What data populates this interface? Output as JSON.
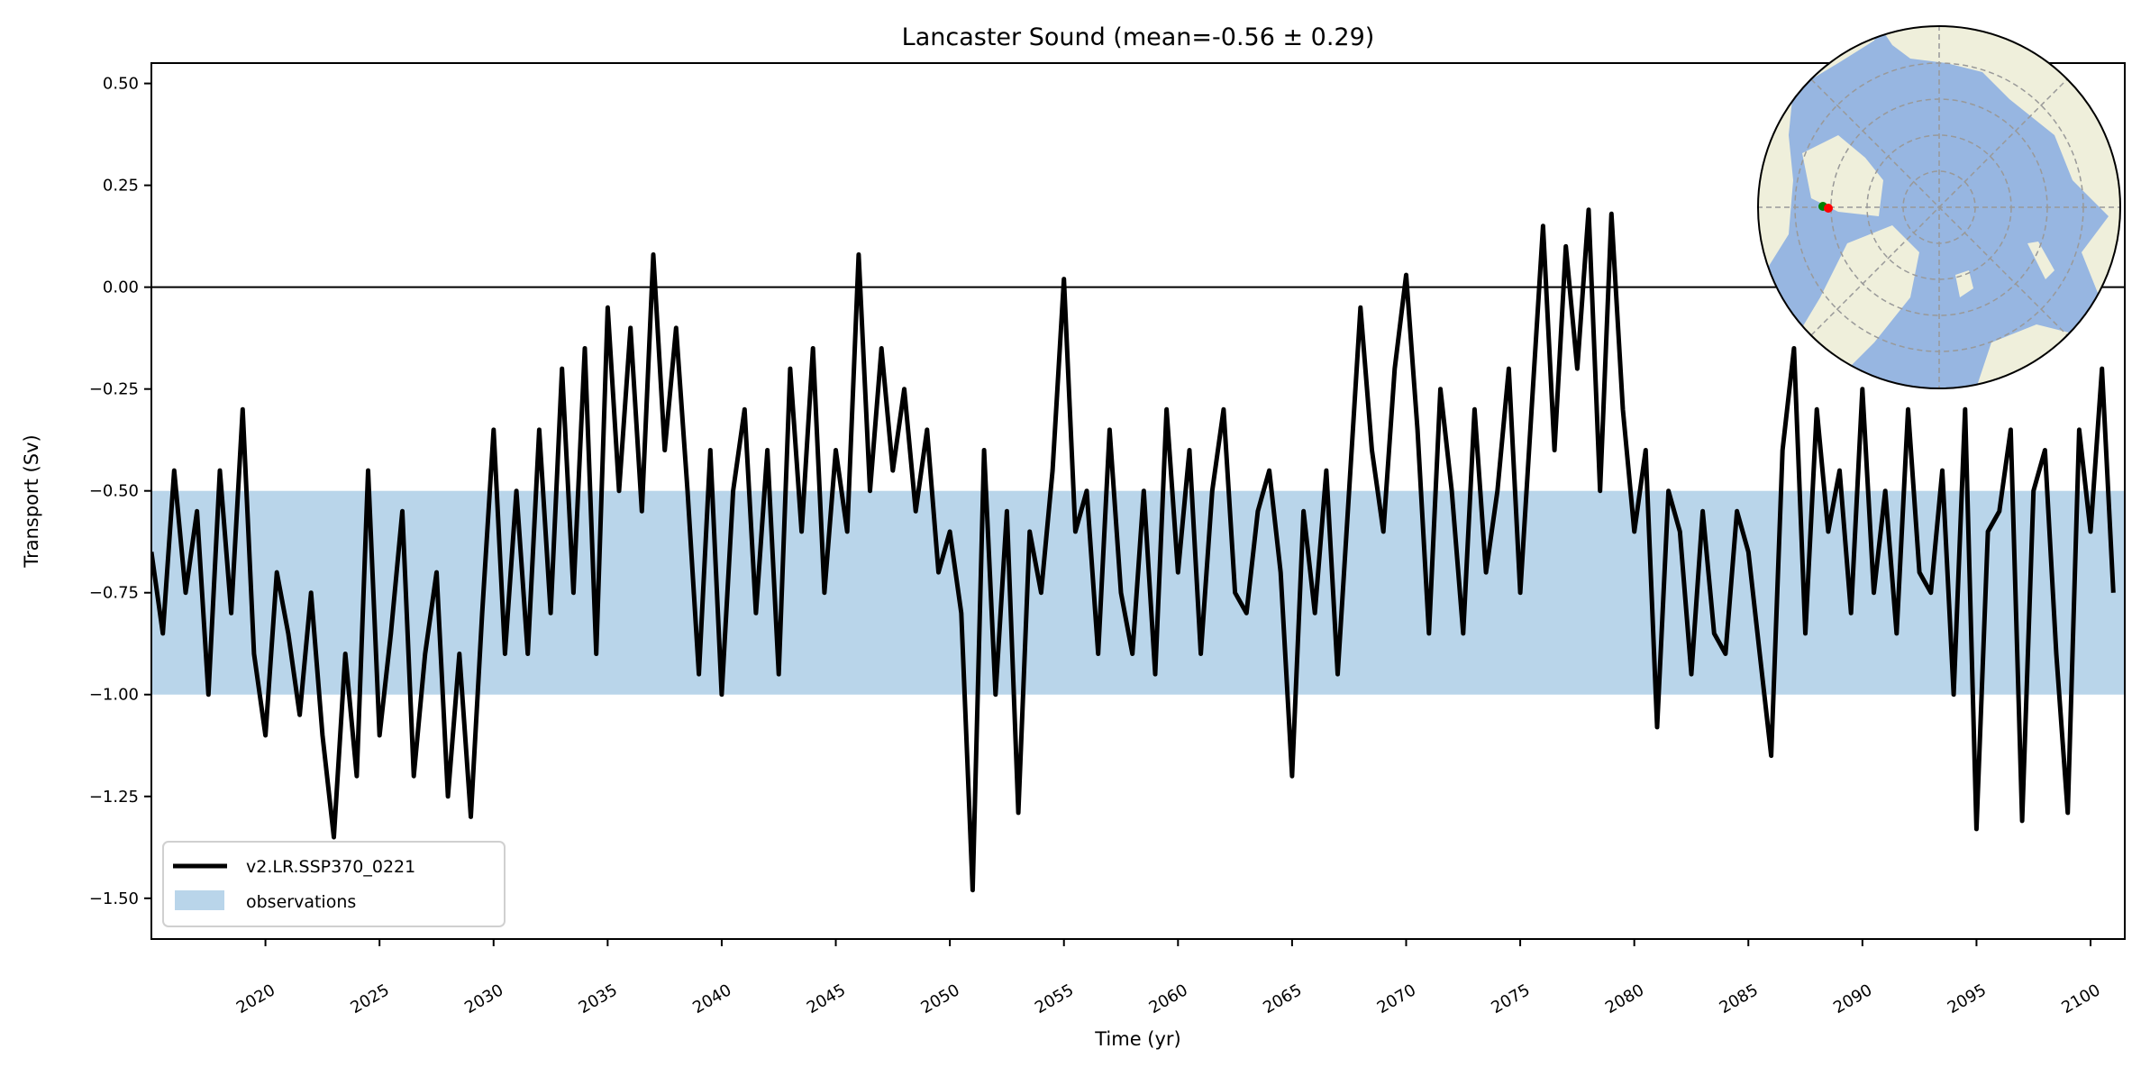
{
  "chart_data": {
    "type": "line",
    "title": "Lancaster Sound (mean=-0.56 ± 0.29)",
    "xlabel": "Time (yr)",
    "ylabel": "Transport (Sv)",
    "xlim": [
      2015,
      2101.5
    ],
    "ylim": [
      -1.6,
      0.55
    ],
    "xticks": [
      2020,
      2025,
      2030,
      2035,
      2040,
      2045,
      2050,
      2055,
      2060,
      2065,
      2070,
      2075,
      2080,
      2085,
      2090,
      2095,
      2100
    ],
    "xtick_labels": [
      "2020",
      "2025",
      "2030",
      "2035",
      "2040",
      "2045",
      "2050",
      "2055",
      "2060",
      "2065",
      "2070",
      "2075",
      "2080",
      "2085",
      "2090",
      "2095",
      "2100"
    ],
    "yticks": [
      0.5,
      0.25,
      0,
      -0.25,
      -0.5,
      -0.75,
      -1.0,
      -1.25,
      -1.5
    ],
    "ytick_labels": [
      "0.50",
      "0.25",
      "0.00",
      "−0.25",
      "−0.50",
      "−0.75",
      "−1.00",
      "−1.25",
      "−1.50"
    ],
    "grid": false,
    "zero_line": 0,
    "observations_band": {
      "label": "observations",
      "min": -1.0,
      "max": -0.5,
      "color": "#b9d5ea"
    },
    "legend_placement": "lower-left",
    "series": [
      {
        "name": "v2.LR.SSP370_0221",
        "color": "#000000",
        "x_start": 2015,
        "x_step": 0.5,
        "values": [
          -0.65,
          -0.85,
          -0.45,
          -0.75,
          -0.55,
          -1.0,
          -0.45,
          -0.8,
          -0.3,
          -0.9,
          -1.1,
          -0.7,
          -0.85,
          -1.05,
          -0.75,
          -1.1,
          -1.35,
          -0.9,
          -1.2,
          -0.45,
          -1.1,
          -0.85,
          -0.55,
          -1.2,
          -0.9,
          -0.7,
          -1.25,
          -0.9,
          -1.3,
          -0.8,
          -0.35,
          -0.9,
          -0.5,
          -0.9,
          -0.35,
          -0.8,
          -0.2,
          -0.75,
          -0.15,
          -0.9,
          -0.05,
          -0.5,
          -0.1,
          -0.55,
          0.08,
          -0.4,
          -0.1,
          -0.5,
          -0.95,
          -0.4,
          -1.0,
          -0.5,
          -0.3,
          -0.8,
          -0.4,
          -0.95,
          -0.2,
          -0.6,
          -0.15,
          -0.75,
          -0.4,
          -0.6,
          0.08,
          -0.5,
          -0.15,
          -0.45,
          -0.25,
          -0.55,
          -0.35,
          -0.7,
          -0.6,
          -0.8,
          -1.48,
          -0.4,
          -1.0,
          -0.55,
          -1.29,
          -0.6,
          -0.75,
          -0.45,
          0.02,
          -0.6,
          -0.5,
          -0.9,
          -0.35,
          -0.75,
          -0.9,
          -0.5,
          -0.95,
          -0.3,
          -0.7,
          -0.4,
          -0.9,
          -0.5,
          -0.3,
          -0.75,
          -0.8,
          -0.55,
          -0.45,
          -0.7,
          -1.2,
          -0.55,
          -0.8,
          -0.45,
          -0.95,
          -0.5,
          -0.05,
          -0.4,
          -0.6,
          -0.2,
          0.03,
          -0.35,
          -0.85,
          -0.25,
          -0.5,
          -0.85,
          -0.3,
          -0.7,
          -0.5,
          -0.2,
          -0.75,
          -0.3,
          0.15,
          -0.4,
          0.1,
          -0.2,
          0.19,
          -0.5,
          0.18,
          -0.3,
          -0.6,
          -0.4,
          -1.08,
          -0.5,
          -0.6,
          -0.95,
          -0.55,
          -0.85,
          -0.9,
          -0.55,
          -0.65,
          -0.9,
          -1.15,
          -0.4,
          -0.15,
          -0.85,
          -0.3,
          -0.6,
          -0.45,
          -0.8,
          -0.25,
          -0.75,
          -0.5,
          -0.85,
          -0.3,
          -0.7,
          -0.75,
          -0.45,
          -1.0,
          -0.3,
          -1.33,
          -0.6,
          -0.55,
          -0.35,
          -1.31,
          -0.5,
          -0.4,
          -0.9,
          -1.29,
          -0.35,
          -0.6,
          -0.2,
          -0.75
        ]
      }
    ],
    "inset_map": {
      "projection": "north-polar-stereographic",
      "ocean_color": "#97b6e1",
      "land_color": "#efefdb",
      "markers": [
        {
          "name": "start",
          "color": "#008000"
        },
        {
          "name": "end",
          "color": "#ff0000"
        }
      ]
    }
  }
}
